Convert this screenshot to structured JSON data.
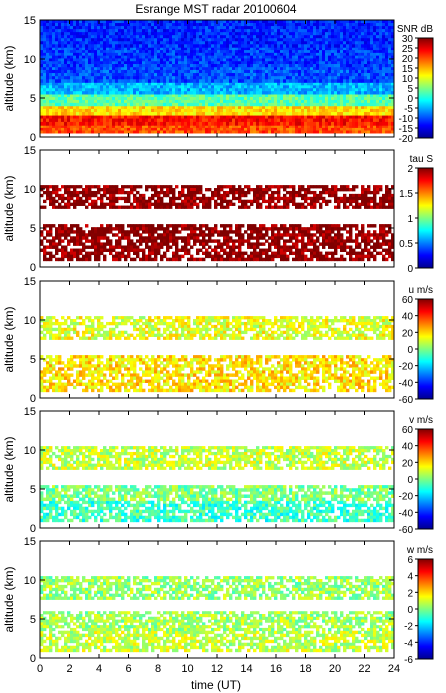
{
  "title": "Esrange MST radar 20100604",
  "x_axis": {
    "label": "time (UT)",
    "ticks": [
      "0",
      "2",
      "4",
      "6",
      "8",
      "10",
      "12",
      "14",
      "16",
      "18",
      "20",
      "22",
      "24"
    ]
  },
  "chart_data": [
    {
      "type": "heatmap",
      "quantity": "SNR",
      "colorbar_label": "SNR dB",
      "colorbar_range": [
        -20,
        30
      ],
      "colorbar_ticks": [
        "30",
        "25",
        "20",
        "15",
        "10",
        "5",
        "0",
        "-5",
        "-10",
        "-15",
        "-20"
      ],
      "ylabel": "altitude (km)",
      "y_ticks": [
        "15",
        "10",
        "5",
        "0"
      ],
      "xlim": [
        0,
        24
      ],
      "ylim": [
        0,
        15
      ],
      "bands": [
        {
          "alt_range": [
            0.5,
            1.5
          ],
          "value": 20
        },
        {
          "alt_range": [
            1.5,
            2.8
          ],
          "value": 23
        },
        {
          "alt_range": [
            2.8,
            4.0
          ],
          "value": 13
        },
        {
          "alt_range": [
            4.0,
            5.5
          ],
          "value": 3
        },
        {
          "alt_range": [
            5.5,
            7.0
          ],
          "value": -5
        },
        {
          "alt_range": [
            7.0,
            9.0
          ],
          "value": -10
        },
        {
          "alt_range": [
            9.0,
            11.5
          ],
          "value": -11
        },
        {
          "alt_range": [
            11.5,
            15.0
          ],
          "value": -12
        }
      ]
    },
    {
      "type": "heatmap",
      "quantity": "tau",
      "colorbar_label": "tau S",
      "colorbar_range": [
        0,
        2
      ],
      "colorbar_ticks": [
        "2",
        "1.5",
        "1",
        "0.5",
        "0"
      ],
      "ylabel": "altitude (km)",
      "y_ticks": [
        "15",
        "10",
        "5",
        "0"
      ],
      "xlim": [
        0,
        24
      ],
      "ylim": [
        0,
        15
      ],
      "bands": [
        {
          "alt_range": [
            0.8,
            5.5
          ],
          "value": 2
        },
        {
          "alt_range": [
            7.5,
            10.5
          ],
          "value": 2
        }
      ]
    },
    {
      "type": "heatmap",
      "quantity": "u",
      "colorbar_label": "u m/s",
      "colorbar_range": [
        -60,
        60
      ],
      "colorbar_ticks": [
        "60",
        "40",
        "20",
        "0",
        "-20",
        "-40",
        "-60"
      ],
      "ylabel": "altitude (km)",
      "y_ticks": [
        "15",
        "10",
        "5",
        "0"
      ],
      "xlim": [
        0,
        24
      ],
      "ylim": [
        0,
        15
      ],
      "bands": [
        {
          "alt_range": [
            0.8,
            5.5
          ],
          "value": 18
        },
        {
          "alt_range": [
            7.5,
            10.5
          ],
          "value": 12
        }
      ]
    },
    {
      "type": "heatmap",
      "quantity": "v",
      "colorbar_label": "v m/s",
      "colorbar_range": [
        -60,
        60
      ],
      "colorbar_ticks": [
        "60",
        "40",
        "20",
        "0",
        "-20",
        "-40",
        "-60"
      ],
      "ylabel": "altitude (km)",
      "y_ticks": [
        "15",
        "10",
        "5",
        "0"
      ],
      "xlim": [
        0,
        24
      ],
      "ylim": [
        0,
        15
      ],
      "bands": [
        {
          "alt_range": [
            0.8,
            3.5
          ],
          "value": -8
        },
        {
          "alt_range": [
            3.5,
            5.5
          ],
          "value": 0
        },
        {
          "alt_range": [
            7.5,
            10.5
          ],
          "value": 8
        }
      ]
    },
    {
      "type": "heatmap",
      "quantity": "w",
      "colorbar_label": "w m/s",
      "colorbar_range": [
        -6,
        6
      ],
      "colorbar_ticks": [
        "6",
        "4",
        "2",
        "0",
        "-2",
        "-4",
        "-6"
      ],
      "ylabel": "altitude (km)",
      "y_ticks": [
        "15",
        "10",
        "5",
        "0"
      ],
      "xlim": [
        0,
        24
      ],
      "ylim": [
        0,
        15
      ],
      "bands": [
        {
          "alt_range": [
            0.8,
            3.5
          ],
          "value": 0.8
        },
        {
          "alt_range": [
            3.5,
            6.0
          ],
          "value": 0.4
        },
        {
          "alt_range": [
            7.5,
            10.5
          ],
          "value": 0.3
        }
      ]
    }
  ]
}
